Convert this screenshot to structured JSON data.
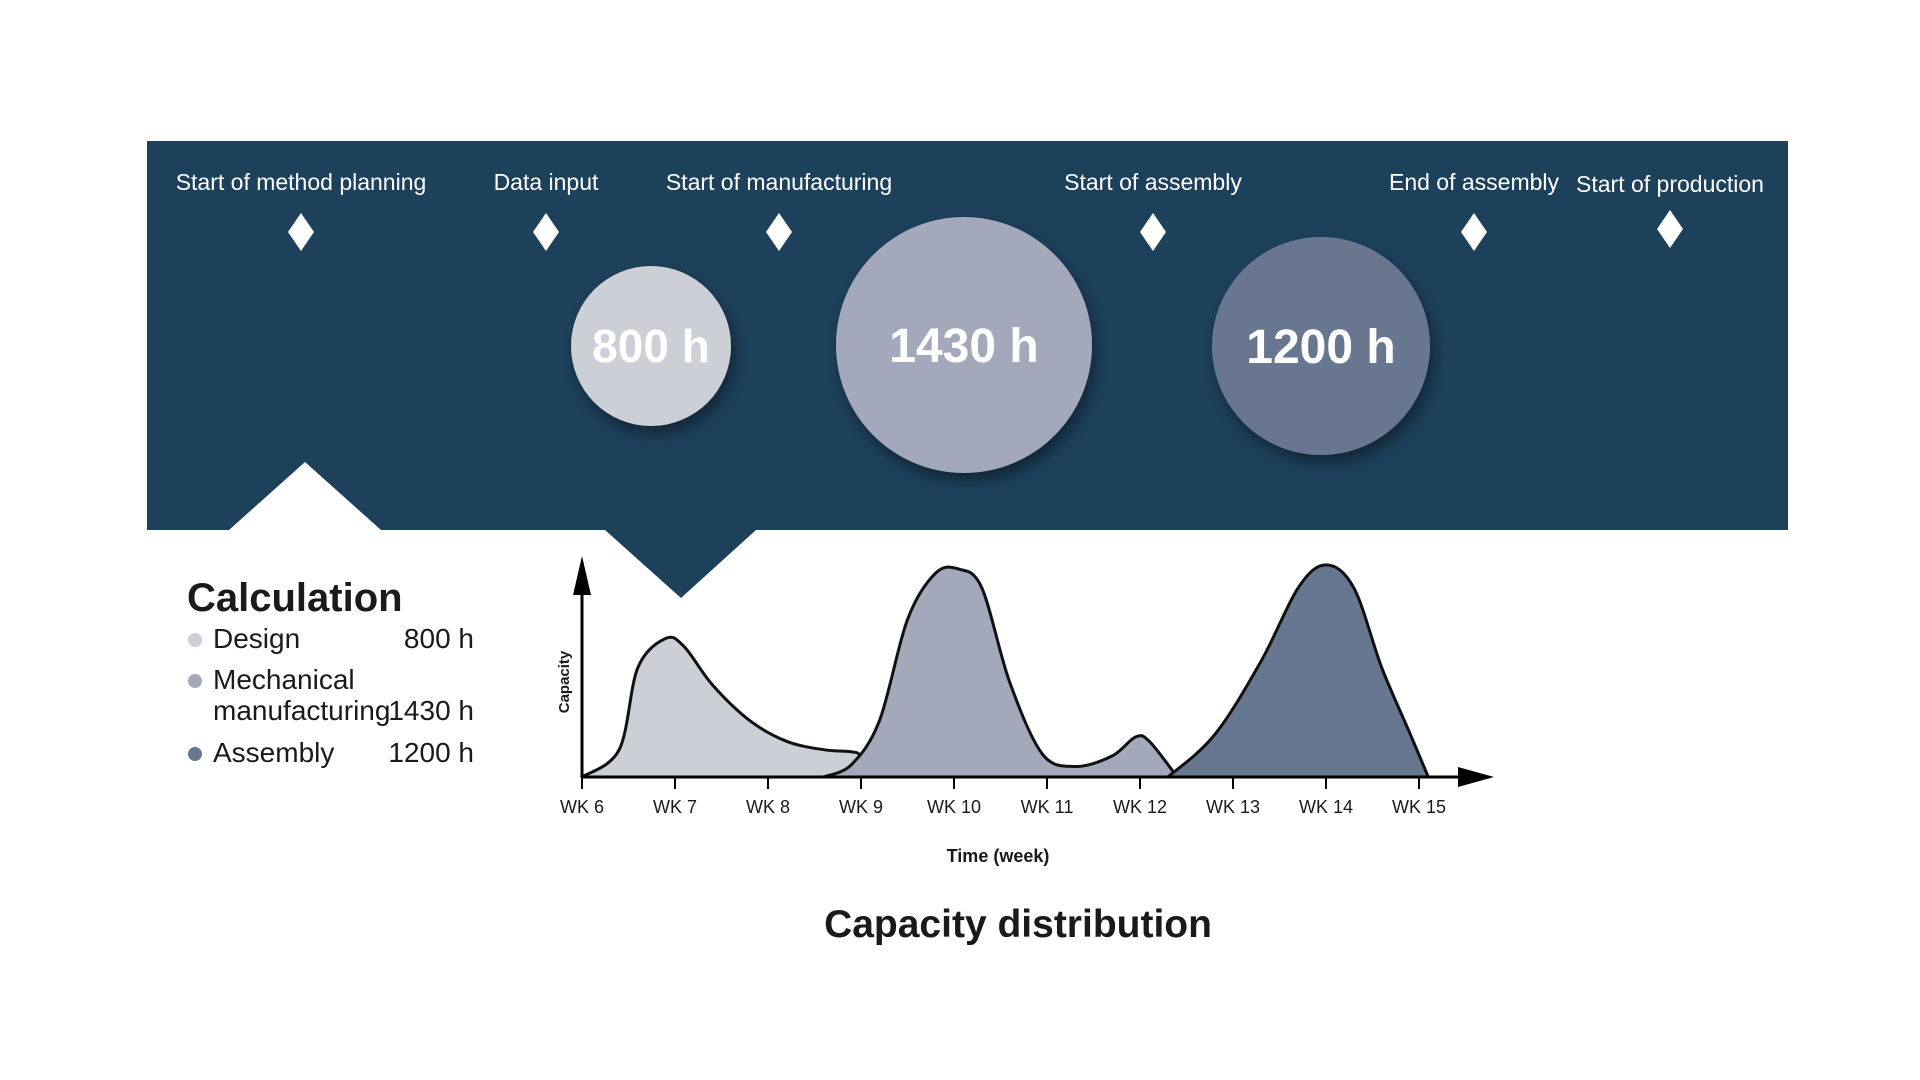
{
  "milestones": [
    {
      "label": "Start of method planning"
    },
    {
      "label": "Data input"
    },
    {
      "label": "Start of manufacturing"
    },
    {
      "label": "Start of assembly"
    },
    {
      "label": "End of assembly"
    },
    {
      "label": "Start of production"
    }
  ],
  "bubbles": [
    {
      "label": "800 h",
      "color": "#cccfd6"
    },
    {
      "label": "1430 h",
      "color": "#a3a9ba"
    },
    {
      "label": "1200 h",
      "color": "#67778f"
    }
  ],
  "calculation": {
    "heading": "Calculation",
    "items": [
      {
        "name_line1": "Design",
        "name_line2": "",
        "value": "800 h",
        "color": "#cccfd6"
      },
      {
        "name_line1": "Mechanical",
        "name_line2": "manufacturing",
        "value": "1430 h",
        "color": "#a3a9ba"
      },
      {
        "name_line1": "Assembly",
        "name_line2": "",
        "value": "1200 h",
        "color": "#67778f"
      }
    ]
  },
  "colors": {
    "banner": "#1d405b",
    "text_dark": "#1a1a1a",
    "outline": "#111111"
  },
  "chart_data": {
    "type": "area",
    "title": "Capacity distribution",
    "xlabel": "Time (week)",
    "ylabel": "Capacity",
    "categories": [
      "WK 6",
      "WK 7",
      "WK 8",
      "WK 9",
      "WK 10",
      "WK 11",
      "WK 12",
      "WK 13",
      "WK 14",
      "WK 15"
    ],
    "xlim": [
      6,
      15.8
    ],
    "ylim": [
      0,
      1
    ],
    "series": [
      {
        "name": "Design",
        "color": "#cccfd6",
        "x": [
          6,
          6.4,
          6.6,
          6.9,
          7.1,
          7.4,
          7.8,
          8.2,
          8.6,
          8.9,
          9.0,
          9.2
        ],
        "y": [
          0,
          0.13,
          0.52,
          0.66,
          0.62,
          0.44,
          0.27,
          0.17,
          0.13,
          0.12,
          0.1,
          0
        ]
      },
      {
        "name": "Mechanical manufacturing",
        "color": "#a3a9ba",
        "x": [
          8.6,
          8.9,
          9.2,
          9.5,
          9.8,
          10.05,
          10.3,
          10.6,
          10.95,
          11.3,
          11.7,
          11.95,
          12.1,
          12.4
        ],
        "y": [
          0,
          0.06,
          0.27,
          0.75,
          0.97,
          0.99,
          0.9,
          0.45,
          0.11,
          0.05,
          0.1,
          0.19,
          0.17,
          0
        ]
      },
      {
        "name": "Assembly",
        "color": "#67778f",
        "x": [
          12.3,
          12.8,
          13.3,
          13.7,
          14.0,
          14.3,
          14.6,
          14.9,
          15.1
        ],
        "y": [
          0,
          0.2,
          0.55,
          0.9,
          1.01,
          0.9,
          0.52,
          0.21,
          0
        ]
      }
    ]
  }
}
